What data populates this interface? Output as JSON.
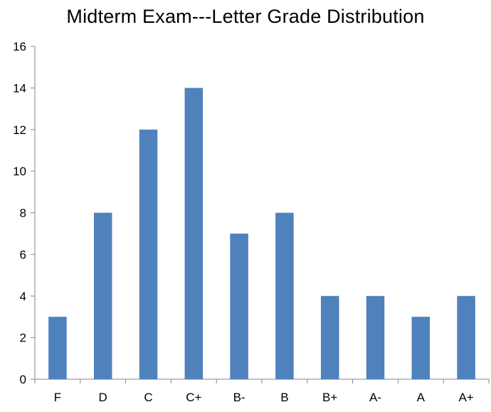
{
  "chart_data": {
    "type": "bar",
    "title": "Midterm Exam---Letter Grade Distribution",
    "xlabel": "",
    "ylabel": "",
    "categories": [
      "F",
      "D",
      "C",
      "C+",
      "B-",
      "B",
      "B+",
      "A-",
      "A",
      "A+"
    ],
    "values": [
      3,
      8,
      12,
      14,
      7,
      8,
      4,
      4,
      3,
      4
    ],
    "ylim": [
      0,
      16
    ],
    "yticks": [
      0,
      2,
      4,
      6,
      8,
      10,
      12,
      14,
      16
    ],
    "grid": false,
    "legend": "none",
    "bar_color": "#4F81BD",
    "axis_color": "#868686"
  }
}
